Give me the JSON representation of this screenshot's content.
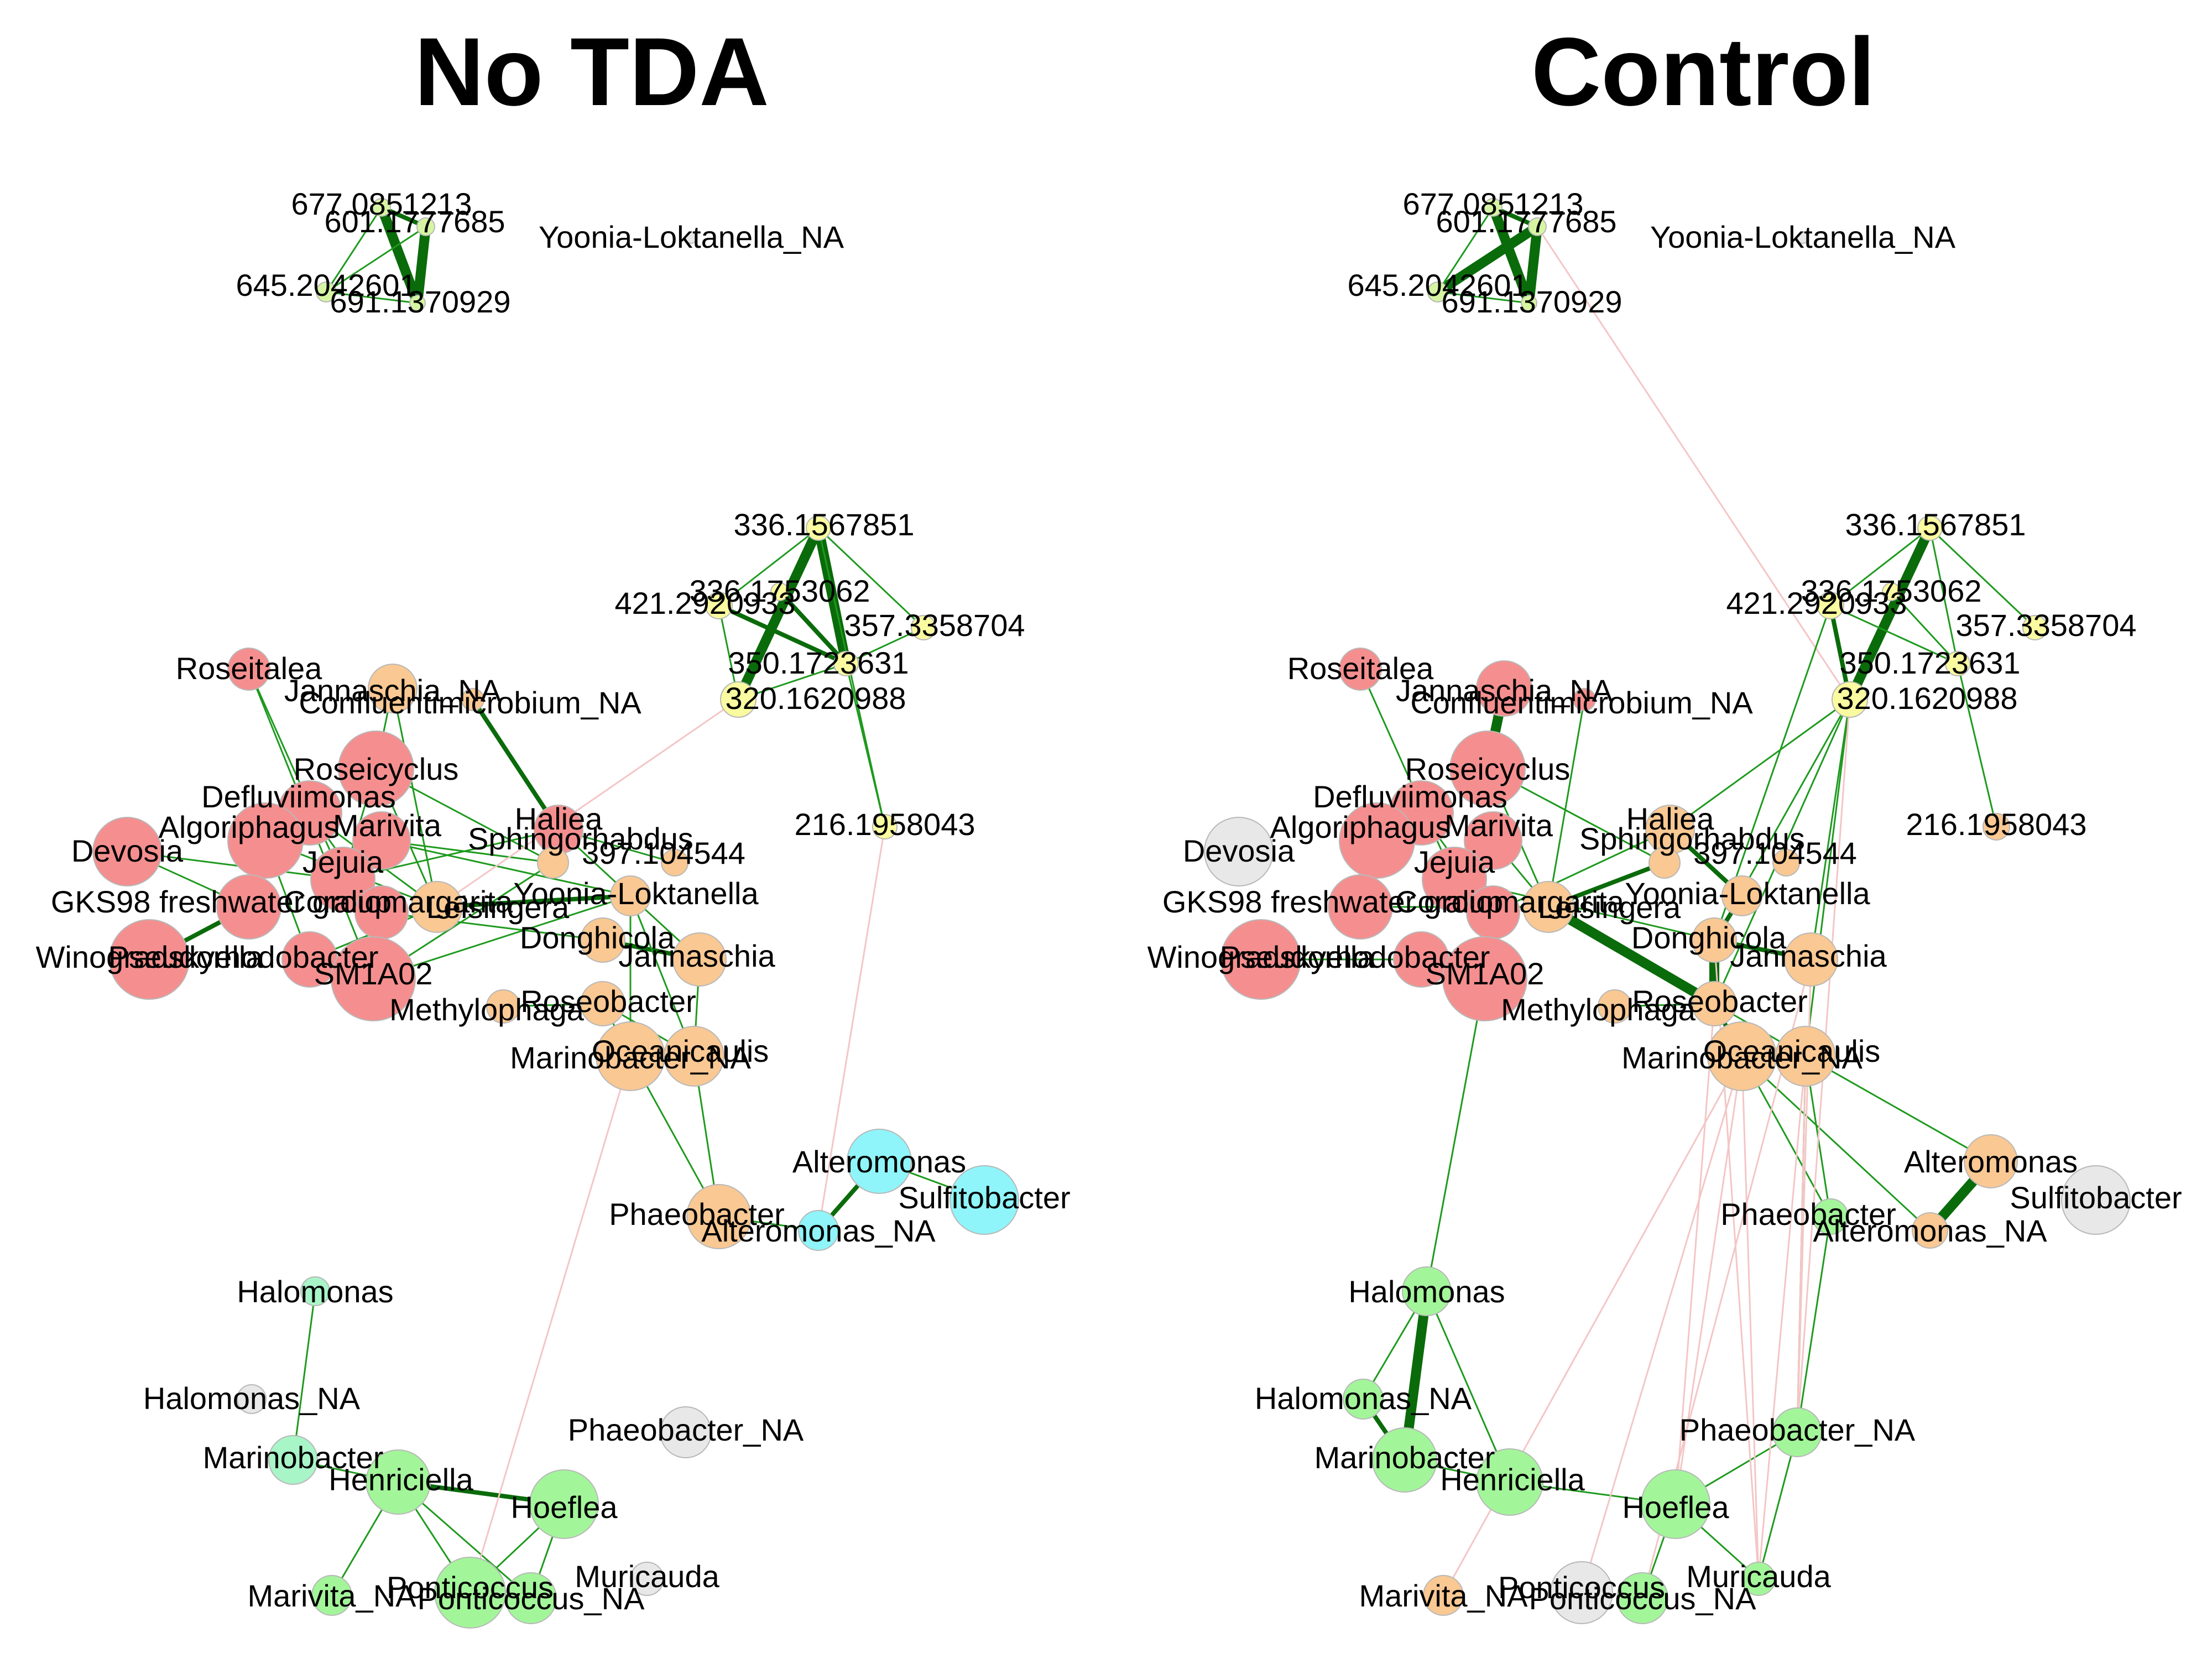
{
  "panels": [
    {
      "title": "No TDA",
      "nodes": [
        {
          "label": "677.0851213",
          "color": "#d6f5a3"
        },
        {
          "label": "601.1777685",
          "color": "#d6f5a3"
        },
        {
          "label": "645.2042601",
          "color": "#d6f5a3"
        },
        {
          "label": "691.1370929",
          "color": "#d6f5a3"
        },
        {
          "label": "Yoonia-Loktanella_NA",
          "color": "#e8e8e8"
        },
        {
          "label": "336.1567851",
          "color": "#fafaa0"
        },
        {
          "label": "336.1753062",
          "color": "#fafaa0"
        },
        {
          "label": "421.2920933",
          "color": "#fafaa0"
        },
        {
          "label": "357.3358704",
          "color": "#fafaa0"
        },
        {
          "label": "350.1723631",
          "color": "#fafaa0"
        },
        {
          "label": "320.1620988",
          "color": "#fafaa0"
        },
        {
          "label": "216.1958043",
          "color": "#fafaa0"
        },
        {
          "label": "Roseitalea",
          "color": "#f58f8f"
        },
        {
          "label": "Jannaschia_NA",
          "color": "#f9c893"
        },
        {
          "label": "Confluentimicrobium_NA",
          "color": "#f9c893"
        },
        {
          "label": "Roseicyclus",
          "color": "#f58f8f"
        },
        {
          "label": "Defluviimonas",
          "color": "#f58f8f"
        },
        {
          "label": "Algoriphagus",
          "color": "#f58f8f"
        },
        {
          "label": "Marivita",
          "color": "#f58f8f"
        },
        {
          "label": "Devosia",
          "color": "#f58f8f"
        },
        {
          "label": "Jejuia",
          "color": "#f58f8f"
        },
        {
          "label": "GKS98 freshwater group",
          "color": "#f58f8f"
        },
        {
          "label": "Coraliomargarita",
          "color": "#f58f8f"
        },
        {
          "label": "Winogradskyella",
          "color": "#f58f8f"
        },
        {
          "label": "Pseudorhodobacter",
          "color": "#f58f8f"
        },
        {
          "label": "SM1A02",
          "color": "#f58f8f"
        },
        {
          "label": "Haliea",
          "color": "#f58f8f"
        },
        {
          "label": "Sphingorhabdus",
          "color": "#f9c893"
        },
        {
          "label": "397.104544",
          "color": "#f9c893"
        },
        {
          "label": "Yoonia-Loktanella",
          "color": "#f9c893"
        },
        {
          "label": "Leisingera",
          "color": "#f9c893"
        },
        {
          "label": "Donghicola",
          "color": "#f9c893"
        },
        {
          "label": "Jannaschia",
          "color": "#f9c893"
        },
        {
          "label": "Methylophaga",
          "color": "#f9c893"
        },
        {
          "label": "Roseobacter",
          "color": "#f9c893"
        },
        {
          "label": "Marinobacter_NA",
          "color": "#f9c893"
        },
        {
          "label": "Oceanicaulis",
          "color": "#f9c893"
        },
        {
          "label": "Alteromonas",
          "color": "#8ff5fa"
        },
        {
          "label": "Sulfitobacter",
          "color": "#8ff5fa"
        },
        {
          "label": "Phaeobacter",
          "color": "#f9c893"
        },
        {
          "label": "Alteromonas_NA",
          "color": "#8ff5fa"
        },
        {
          "label": "Halomonas",
          "color": "#a8f5c8"
        },
        {
          "label": "Halomonas_NA",
          "color": "#e8e8e8"
        },
        {
          "label": "Phaeobacter_NA",
          "color": "#e8e8e8"
        },
        {
          "label": "Marinobacter",
          "color": "#a8f5c8"
        },
        {
          "label": "Henriciella",
          "color": "#a3f59a"
        },
        {
          "label": "Hoeflea",
          "color": "#a3f59a"
        },
        {
          "label": "Muricauda",
          "color": "#e8e8e8"
        },
        {
          "label": "Marivita_NA",
          "color": "#a3f59a"
        },
        {
          "label": "Ponticoccus",
          "color": "#a3f59a"
        },
        {
          "label": "Ponticoccus_NA",
          "color": "#a3f59a"
        }
      ]
    },
    {
      "title": "Control",
      "nodes": [
        {
          "label": "677.0851213",
          "color": "#d6f5a3"
        },
        {
          "label": "601.1777685",
          "color": "#d6f5a3"
        },
        {
          "label": "645.2042601",
          "color": "#d6f5a3"
        },
        {
          "label": "691.1370929",
          "color": "#d6f5a3"
        },
        {
          "label": "Yoonia-Loktanella_NA",
          "color": "#e8e8e8"
        },
        {
          "label": "336.1567851",
          "color": "#fafaa0"
        },
        {
          "label": "336.1753062",
          "color": "#fafaa0"
        },
        {
          "label": "421.2920933",
          "color": "#fafaa0"
        },
        {
          "label": "357.3358704",
          "color": "#fafaa0"
        },
        {
          "label": "350.1723631",
          "color": "#fafaa0"
        },
        {
          "label": "320.1620988",
          "color": "#fafaa0"
        },
        {
          "label": "216.1958043",
          "color": "#f9c893"
        },
        {
          "label": "Roseitalea",
          "color": "#f58f8f"
        },
        {
          "label": "Jannaschia_NA",
          "color": "#f58f8f"
        },
        {
          "label": "Confluentimicrobium_NA",
          "color": "#f58f8f"
        },
        {
          "label": "Roseicyclus",
          "color": "#f58f8f"
        },
        {
          "label": "Defluviimonas",
          "color": "#f58f8f"
        },
        {
          "label": "Algoriphagus",
          "color": "#f58f8f"
        },
        {
          "label": "Marivita",
          "color": "#f58f8f"
        },
        {
          "label": "Devosia",
          "color": "#e8e8e8"
        },
        {
          "label": "Jejuia",
          "color": "#f58f8f"
        },
        {
          "label": "GKS98 freshwater group",
          "color": "#f58f8f"
        },
        {
          "label": "Coraliomargarita",
          "color": "#f58f8f"
        },
        {
          "label": "Winogradskyella",
          "color": "#f58f8f"
        },
        {
          "label": "Pseudorhodobacter",
          "color": "#f58f8f"
        },
        {
          "label": "SM1A02",
          "color": "#f58f8f"
        },
        {
          "label": "Haliea",
          "color": "#f9c893"
        },
        {
          "label": "Sphingorhabdus",
          "color": "#f9c893"
        },
        {
          "label": "397.104544",
          "color": "#f9c893"
        },
        {
          "label": "Yoonia-Loktanella",
          "color": "#f9c893"
        },
        {
          "label": "Leisingera",
          "color": "#f9c893"
        },
        {
          "label": "Donghicola",
          "color": "#f9c893"
        },
        {
          "label": "Jannaschia",
          "color": "#f9c893"
        },
        {
          "label": "Methylophaga",
          "color": "#f9c893"
        },
        {
          "label": "Roseobacter",
          "color": "#f9c893"
        },
        {
          "label": "Marinobacter_NA",
          "color": "#f9c893"
        },
        {
          "label": "Oceanicaulis",
          "color": "#f9c893"
        },
        {
          "label": "Alteromonas",
          "color": "#f9c893"
        },
        {
          "label": "Sulfitobacter",
          "color": "#e8e8e8"
        },
        {
          "label": "Phaeobacter",
          "color": "#a3f59a"
        },
        {
          "label": "Alteromonas_NA",
          "color": "#f9c893"
        },
        {
          "label": "Halomonas",
          "color": "#a3f59a"
        },
        {
          "label": "Halomonas_NA",
          "color": "#a3f59a"
        },
        {
          "label": "Phaeobacter_NA",
          "color": "#a3f59a"
        },
        {
          "label": "Marinobacter",
          "color": "#a3f59a"
        },
        {
          "label": "Henriciella",
          "color": "#a3f59a"
        },
        {
          "label": "Hoeflea",
          "color": "#a3f59a"
        },
        {
          "label": "Muricauda",
          "color": "#a3f59a"
        },
        {
          "label": "Marivita_NA",
          "color": "#f9c893"
        },
        {
          "label": "Ponticoccus",
          "color": "#e8e8e8"
        },
        {
          "label": "Ponticoccus_NA",
          "color": "#a3f59a"
        }
      ]
    }
  ],
  "colors": {
    "positive_edge": "#1e9a1e",
    "strong_positive_edge": "#0a6b0a",
    "negative_edge": "#f4c6c6",
    "node_stroke": "#b8b8b8"
  }
}
